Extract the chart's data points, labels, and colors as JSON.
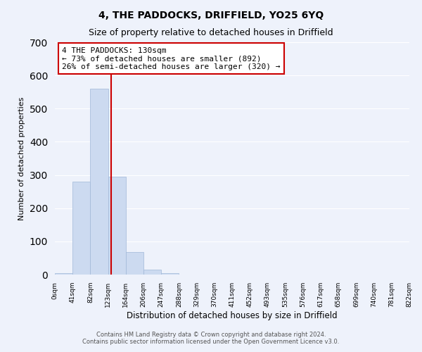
{
  "title": "4, THE PADDOCKS, DRIFFIELD, YO25 6YQ",
  "subtitle": "Size of property relative to detached houses in Driffield",
  "xlabel": "Distribution of detached houses by size in Driffield",
  "ylabel": "Number of detached properties",
  "bar_values": [
    5,
    280,
    560,
    295,
    68,
    14,
    5,
    0,
    0,
    0,
    0,
    0,
    0,
    0,
    0,
    0,
    0,
    0,
    0,
    0
  ],
  "bin_labels": [
    "0sqm",
    "41sqm",
    "82sqm",
    "123sqm",
    "164sqm",
    "206sqm",
    "247sqm",
    "288sqm",
    "329sqm",
    "370sqm",
    "411sqm",
    "452sqm",
    "493sqm",
    "535sqm",
    "576sqm",
    "617sqm",
    "658sqm",
    "699sqm",
    "740sqm",
    "781sqm",
    "822sqm"
  ],
  "bar_color": "#ccdaf0",
  "bar_edge_color": "#a0b8d8",
  "vline_color": "#cc0000",
  "ylim": [
    0,
    700
  ],
  "yticks": [
    0,
    100,
    200,
    300,
    400,
    500,
    600,
    700
  ],
  "annotation_line1": "4 THE PADDOCKS: 130sqm",
  "annotation_line2": "← 73% of detached houses are smaller (892)",
  "annotation_line3": "26% of semi-detached houses are larger (320) →",
  "annotation_box_color": "#ffffff",
  "annotation_box_edge": "#cc0000",
  "footer_line1": "Contains HM Land Registry data © Crown copyright and database right 2024.",
  "footer_line2": "Contains public sector information licensed under the Open Government Licence v3.0.",
  "background_color": "#eef2fb",
  "grid_color": "#ffffff",
  "title_fontsize": 10,
  "subtitle_fontsize": 9
}
